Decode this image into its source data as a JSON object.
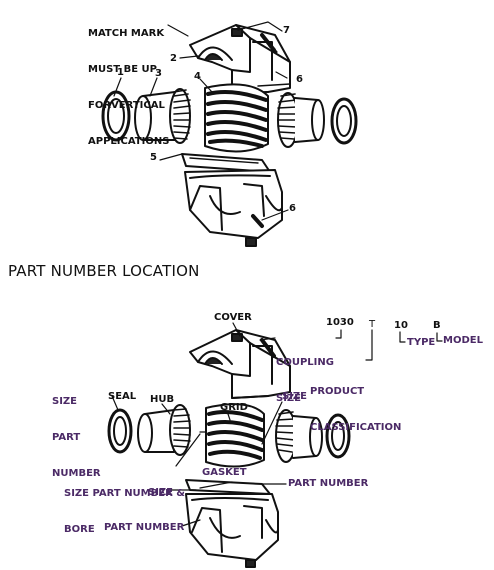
{
  "top_diagram": {
    "note_lines": [
      "MATCH MARK",
      "MUST BE UP",
      "FORVERTICAL",
      "APPLICATIONS"
    ],
    "callouts": {
      "c1": "1",
      "c2": "2",
      "c3": "3",
      "c4": "4",
      "c5": "5",
      "c6a": "6",
      "c6b": "6",
      "c7": "7"
    }
  },
  "section_title": "PART NUMBER LOCATION",
  "bottom_diagram": {
    "cover": "COVER",
    "coupling_size_line1": "COUPLING",
    "coupling_size_line2": "SIZE",
    "code": {
      "size": "1030",
      "classification": "T",
      "type": "10",
      "model": "B"
    },
    "product_class_line1": "PRODUCT",
    "product_class_line2": "CLASSIFICATION",
    "type_label": "TYPE",
    "model_label": "MODEL",
    "size_part_number_lines": [
      "SIZE",
      "PART",
      "NUMBER"
    ],
    "seal": "SEAL",
    "hub": "HUB",
    "grid": "GRID",
    "size_right": "SIZE",
    "size_part_number_bore_line1": "SIZE PART NUMBER &",
    "size_part_number_bore_line2": "BORE",
    "gasket": "GASKET",
    "size_left": "SIZE",
    "part_number_right": "PART NUMBER",
    "part_number_bottom": "PART NUMBER"
  },
  "colors": {
    "ink": "#111111",
    "label_purple": "#4b2a66",
    "background": "#ffffff"
  }
}
